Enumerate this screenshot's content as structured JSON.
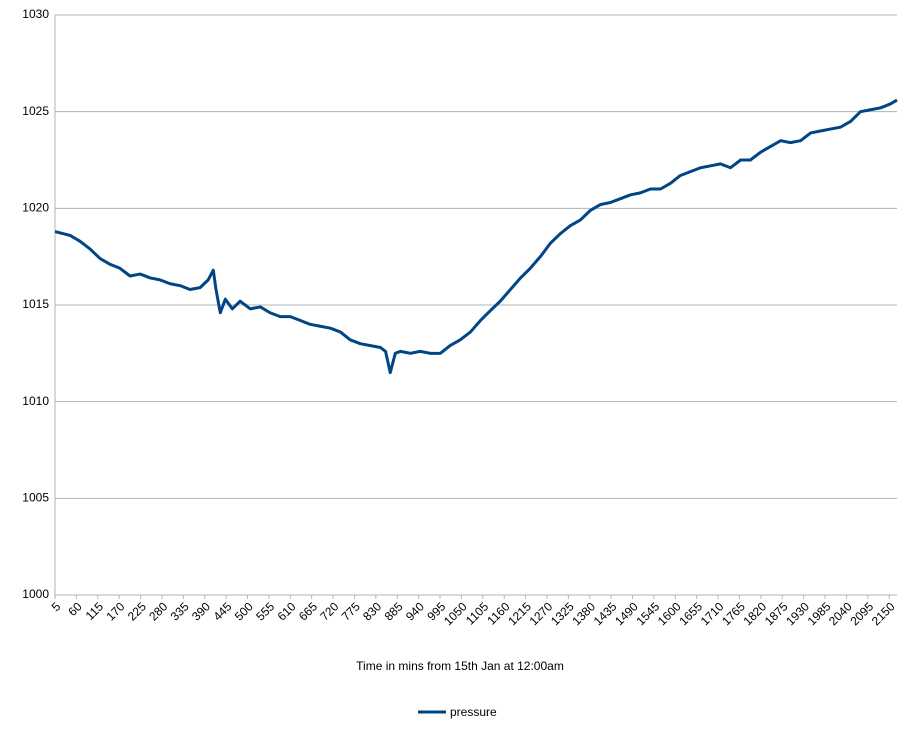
{
  "chart_data": {
    "type": "line",
    "x_label": "Time in mins from 15th Jan at 12:00am",
    "x": [
      5,
      44,
      69,
      95,
      121,
      147,
      172,
      198,
      224,
      250,
      275,
      301,
      327,
      352,
      378,
      399,
      412,
      419,
      430,
      443,
      461,
      481,
      507,
      533,
      558,
      584,
      610,
      636,
      661,
      687,
      713,
      739,
      764,
      790,
      816,
      842,
      855,
      867,
      880,
      893,
      919,
      944,
      970,
      996,
      1021,
      1047,
      1073,
      1099,
      1124,
      1150,
      1176,
      1202,
      1227,
      1253,
      1279,
      1305,
      1330,
      1356,
      1382,
      1408,
      1433,
      1459,
      1485,
      1510,
      1536,
      1562,
      1588,
      1613,
      1639,
      1665,
      1691,
      1716,
      1742,
      1768,
      1793,
      1819,
      1845,
      1871,
      1896,
      1922,
      1948,
      1973,
      1999,
      2025,
      2051,
      2076,
      2102,
      2128,
      2153,
      2170
    ],
    "series": [
      {
        "name": "pressure",
        "color": "#004586",
        "values": [
          1018.8,
          1018.6,
          1018.3,
          1017.9,
          1017.4,
          1017.1,
          1016.9,
          1016.5,
          1016.6,
          1016.4,
          1016.3,
          1016.1,
          1016.0,
          1015.8,
          1015.9,
          1016.3,
          1016.8,
          1015.8,
          1014.6,
          1015.3,
          1014.8,
          1015.2,
          1014.8,
          1014.9,
          1014.6,
          1014.4,
          1014.4,
          1014.2,
          1014.0,
          1013.9,
          1013.8,
          1013.6,
          1013.2,
          1013.0,
          1012.9,
          1012.8,
          1012.6,
          1011.5,
          1012.5,
          1012.6,
          1012.5,
          1012.6,
          1012.5,
          1012.5,
          1012.9,
          1013.2,
          1013.6,
          1014.2,
          1014.7,
          1015.2,
          1015.8,
          1016.4,
          1016.9,
          1017.5,
          1018.2,
          1018.7,
          1019.1,
          1019.4,
          1019.9,
          1020.2,
          1020.3,
          1020.5,
          1020.7,
          1020.8,
          1021.0,
          1021.0,
          1021.3,
          1021.7,
          1021.9,
          1022.1,
          1022.2,
          1022.3,
          1022.1,
          1022.5,
          1022.5,
          1022.9,
          1023.2,
          1023.5,
          1023.4,
          1023.5,
          1023.9,
          1024.0,
          1024.1,
          1024.2,
          1024.5,
          1025.0,
          1025.1,
          1025.2,
          1025.4,
          1025.6
        ]
      }
    ],
    "xlim": [
      5,
      2170
    ],
    "xticks": [
      5,
      60,
      115,
      170,
      225,
      280,
      335,
      390,
      445,
      500,
      555,
      610,
      665,
      720,
      775,
      830,
      885,
      940,
      995,
      1050,
      1105,
      1160,
      1215,
      1270,
      1325,
      1380,
      1435,
      1490,
      1545,
      1600,
      1655,
      1710,
      1765,
      1820,
      1875,
      1930,
      1985,
      2040,
      2095,
      2150
    ],
    "ylim": [
      1000,
      1030
    ],
    "yticks": [
      1000,
      1005,
      1010,
      1015,
      1020,
      1025,
      1030
    ],
    "grid": true,
    "legend": "bottom"
  }
}
